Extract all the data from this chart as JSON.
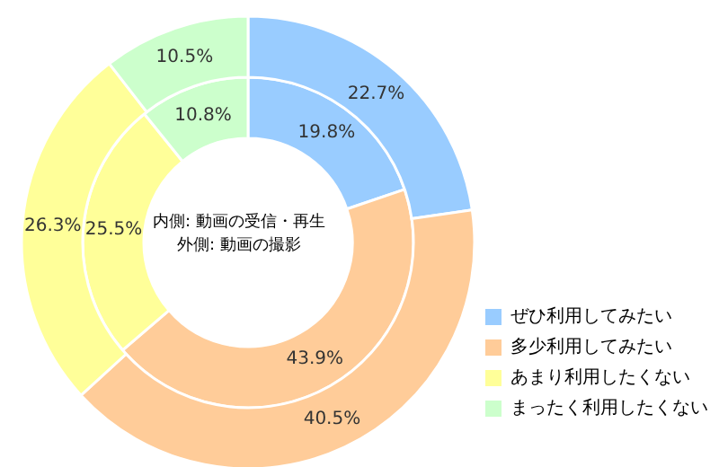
{
  "chart_data": {
    "type": "donut",
    "categories": [
      "ぜひ利用してみたい",
      "多少利用してみたい",
      "あまり利用したくない",
      "まったく利用したくない"
    ],
    "colors": [
      "#99ccff",
      "#ffcc99",
      "#ffff99",
      "#ccffcc"
    ],
    "series": [
      {
        "values": [
          19.8,
          43.9,
          25.5,
          10.8
        ],
        "value_labels": [
          "19.8%",
          "43.9%",
          "25.5%",
          "10.8%"
        ]
      },
      {
        "values": [
          22.7,
          40.5,
          26.3,
          10.5
        ],
        "value_labels": [
          "22.7%",
          "40.5%",
          "26.3%",
          "10.5%"
        ]
      }
    ],
    "annotations": [
      "内側: 動画の受信・再生",
      "外側: 動画の撮影"
    ],
    "legend": "bottom right"
  }
}
